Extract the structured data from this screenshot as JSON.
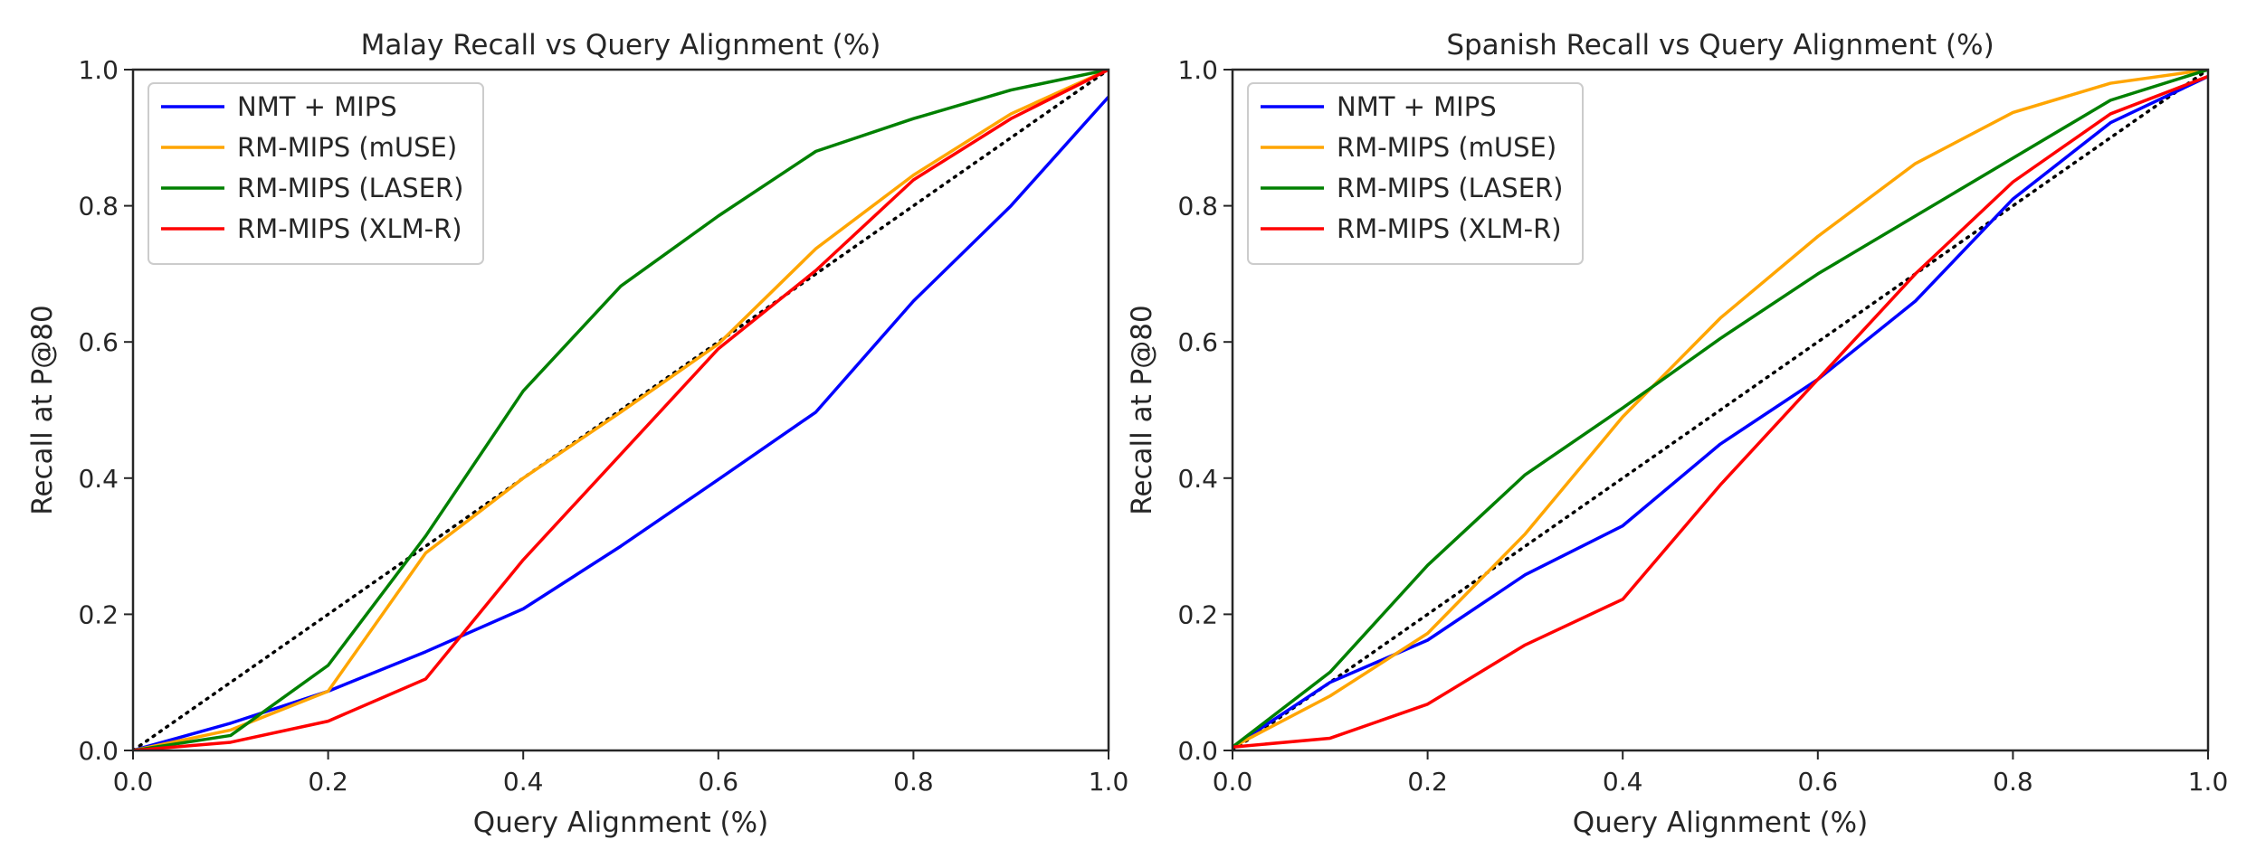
{
  "chart_data": [
    {
      "type": "line",
      "title": "Malay Recall vs Query Alignment (%)",
      "xlabel": "Query Alignment (%)",
      "ylabel": "Recall at P@80",
      "xlim": [
        0.0,
        1.0
      ],
      "ylim": [
        0.0,
        1.0
      ],
      "x_ticks": [
        "0.0",
        "0.2",
        "0.4",
        "0.6",
        "0.8",
        "1.0"
      ],
      "y_ticks": [
        "0.0",
        "0.2",
        "0.4",
        "0.6",
        "0.8",
        "1.0"
      ],
      "grid": false,
      "legend_position": "top-left",
      "x": [
        0.0,
        0.1,
        0.2,
        0.3,
        0.4,
        0.5,
        0.6,
        0.7,
        0.8,
        0.9,
        1.0
      ],
      "series": [
        {
          "name": "NMT + MIPS",
          "color": "#0000ff",
          "values": [
            0.0,
            0.04,
            0.087,
            0.145,
            0.208,
            0.3,
            0.398,
            0.497,
            0.66,
            0.8,
            0.96
          ]
        },
        {
          "name": "RM-MIPS (mUSE)",
          "color": "#ffa500",
          "values": [
            0.0,
            0.03,
            0.087,
            0.29,
            0.4,
            0.497,
            0.597,
            0.737,
            0.845,
            0.935,
            1.0
          ]
        },
        {
          "name": "RM-MIPS (LASER)",
          "color": "#008000",
          "values": [
            0.0,
            0.022,
            0.125,
            0.315,
            0.528,
            0.682,
            0.785,
            0.88,
            0.928,
            0.97,
            1.0
          ]
        },
        {
          "name": "RM-MIPS (XLM-R)",
          "color": "#ff0000",
          "values": [
            0.0,
            0.012,
            0.043,
            0.105,
            0.28,
            0.435,
            0.59,
            0.705,
            0.838,
            0.928,
            1.0
          ]
        }
      ],
      "reference_line": {
        "name": "identity",
        "color": "#000000",
        "x": [
          0.0,
          1.0
        ],
        "y": [
          0.0,
          1.0
        ]
      }
    },
    {
      "type": "line",
      "title": "Spanish Recall vs Query Alignment (%)",
      "xlabel": "Query Alignment (%)",
      "ylabel": "Recall at P@80",
      "xlim": [
        0.0,
        1.0
      ],
      "ylim": [
        0.0,
        1.0
      ],
      "x_ticks": [
        "0.0",
        "0.2",
        "0.4",
        "0.6",
        "0.8",
        "1.0"
      ],
      "y_ticks": [
        "0.0",
        "0.2",
        "0.4",
        "0.6",
        "0.8",
        "1.0"
      ],
      "grid": false,
      "legend_position": "top-left",
      "x": [
        0.0,
        0.1,
        0.2,
        0.3,
        0.4,
        0.5,
        0.6,
        0.7,
        0.8,
        0.9,
        1.0
      ],
      "series": [
        {
          "name": "NMT + MIPS",
          "color": "#0000ff",
          "values": [
            0.005,
            0.1,
            0.162,
            0.258,
            0.33,
            0.45,
            0.545,
            0.66,
            0.81,
            0.922,
            0.99
          ]
        },
        {
          "name": "RM-MIPS (mUSE)",
          "color": "#ffa500",
          "values": [
            0.005,
            0.08,
            0.172,
            0.318,
            0.49,
            0.635,
            0.755,
            0.862,
            0.937,
            0.98,
            1.0
          ]
        },
        {
          "name": "RM-MIPS (LASER)",
          "color": "#008000",
          "values": [
            0.005,
            0.115,
            0.272,
            0.405,
            0.503,
            0.605,
            0.7,
            0.785,
            0.87,
            0.955,
            1.0
          ]
        },
        {
          "name": "RM-MIPS (XLM-R)",
          "color": "#ff0000",
          "values": [
            0.005,
            0.018,
            0.068,
            0.155,
            0.222,
            0.39,
            0.545,
            0.7,
            0.835,
            0.935,
            0.99
          ]
        }
      ],
      "reference_line": {
        "name": "identity",
        "color": "#000000",
        "x": [
          0.0,
          1.0
        ],
        "y": [
          0.0,
          1.0
        ]
      }
    }
  ]
}
